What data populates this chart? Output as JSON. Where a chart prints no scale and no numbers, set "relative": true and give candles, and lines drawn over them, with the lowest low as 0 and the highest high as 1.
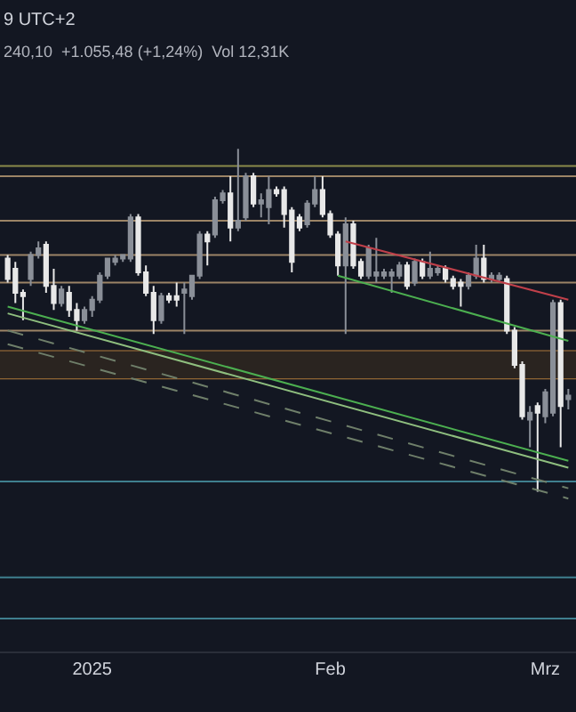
{
  "chart_data": {
    "type": "candlestick",
    "relative": true,
    "annotations": [
      "9 UTC+2",
      "240,10  +1.055,48 (+1,24%)  Vol 12,31K"
    ],
    "x": [
      "2024-12-21",
      "2024-12-22",
      "2024-12-23",
      "2024-12-24",
      "2024-12-25",
      "2024-12-26",
      "2024-12-27",
      "2024-12-28",
      "2024-12-29",
      "2024-12-30",
      "2024-12-31",
      "2025-01-01",
      "2025-01-02",
      "2025-01-03",
      "2025-01-04",
      "2025-01-05",
      "2025-01-06",
      "2025-01-07",
      "2025-01-08",
      "2025-01-09",
      "2025-01-10",
      "2025-01-11",
      "2025-01-12",
      "2025-01-13",
      "2025-01-14",
      "2025-01-15",
      "2025-01-16",
      "2025-01-17",
      "2025-01-18",
      "2025-01-19",
      "2025-01-20",
      "2025-01-21",
      "2025-01-22",
      "2025-01-23",
      "2025-01-24",
      "2025-01-25",
      "2025-01-26",
      "2025-01-27",
      "2025-01-28",
      "2025-01-29",
      "2025-01-30",
      "2025-01-31",
      "2025-02-01",
      "2025-02-02",
      "2025-02-03",
      "2025-02-04",
      "2025-02-05",
      "2025-02-06",
      "2025-02-07",
      "2025-02-08",
      "2025-02-09",
      "2025-02-10",
      "2025-02-11",
      "2025-02-12",
      "2025-02-13",
      "2025-02-14",
      "2025-02-15",
      "2025-02-16",
      "2025-02-17",
      "2025-02-18",
      "2025-02-19",
      "2025-02-20",
      "2025-02-21",
      "2025-02-22",
      "2025-02-23",
      "2025-02-24",
      "2025-02-25",
      "2025-02-26",
      "2025-02-27",
      "2025-02-28",
      "2025-03-01",
      "2025-03-02",
      "2025-03-03",
      "2025-03-04"
    ],
    "ohlc": [
      [
        0.68,
        0.69,
        0.61,
        0.62
      ],
      [
        0.65,
        0.67,
        0.55,
        0.58
      ],
      [
        0.58,
        0.59,
        0.5,
        0.57
      ],
      [
        0.62,
        0.7,
        0.6,
        0.69
      ],
      [
        0.69,
        0.73,
        0.68,
        0.71
      ],
      [
        0.72,
        0.73,
        0.58,
        0.6
      ],
      [
        0.6,
        0.65,
        0.53,
        0.55
      ],
      [
        0.55,
        0.6,
        0.54,
        0.59
      ],
      [
        0.58,
        0.6,
        0.51,
        0.53
      ],
      [
        0.53,
        0.55,
        0.47,
        0.5
      ],
      [
        0.5,
        0.54,
        0.49,
        0.53
      ],
      [
        0.53,
        0.57,
        0.51,
        0.56
      ],
      [
        0.56,
        0.64,
        0.55,
        0.63
      ],
      [
        0.63,
        0.68,
        0.62,
        0.68
      ],
      [
        0.67,
        0.69,
        0.66,
        0.68
      ],
      [
        0.68,
        0.69,
        0.67,
        0.69
      ],
      [
        0.68,
        0.81,
        0.67,
        0.8
      ],
      [
        0.8,
        0.81,
        0.63,
        0.64
      ],
      [
        0.64,
        0.66,
        0.57,
        0.58
      ],
      [
        0.58,
        0.6,
        0.46,
        0.5
      ],
      [
        0.5,
        0.58,
        0.49,
        0.57
      ],
      [
        0.57,
        0.58,
        0.55,
        0.56
      ],
      [
        0.57,
        0.61,
        0.54,
        0.56
      ],
      [
        0.58,
        0.61,
        0.46,
        0.59
      ],
      [
        0.57,
        0.63,
        0.56,
        0.63
      ],
      [
        0.63,
        0.76,
        0.62,
        0.75
      ],
      [
        0.75,
        0.76,
        0.66,
        0.73
      ],
      [
        0.75,
        0.86,
        0.74,
        0.85
      ],
      [
        0.85,
        0.88,
        0.84,
        0.87
      ],
      [
        0.87,
        0.92,
        0.73,
        0.77
      ],
      [
        0.77,
        1.0,
        0.76,
        0.79
      ],
      [
        0.8,
        0.93,
        0.79,
        0.92
      ],
      [
        0.92,
        0.93,
        0.83,
        0.84
      ],
      [
        0.84,
        0.87,
        0.8,
        0.85
      ],
      [
        0.83,
        0.92,
        0.78,
        0.88
      ],
      [
        0.88,
        0.89,
        0.86,
        0.87
      ],
      [
        0.88,
        0.89,
        0.77,
        0.81
      ],
      [
        0.82,
        0.83,
        0.64,
        0.67
      ],
      [
        0.8,
        0.81,
        0.76,
        0.77
      ],
      [
        0.78,
        0.85,
        0.77,
        0.84
      ],
      [
        0.84,
        0.92,
        0.83,
        0.88
      ],
      [
        0.88,
        0.92,
        0.8,
        0.81
      ],
      [
        0.81,
        0.82,
        0.74,
        0.75
      ],
      [
        0.75,
        0.76,
        0.63,
        0.66
      ],
      [
        0.66,
        0.8,
        0.46,
        0.78
      ],
      [
        0.78,
        0.79,
        0.65,
        0.66
      ],
      [
        0.67,
        0.68,
        0.62,
        0.63
      ],
      [
        0.63,
        0.72,
        0.62,
        0.71
      ],
      [
        0.63,
        0.74,
        0.61,
        0.64
      ],
      [
        0.63,
        0.65,
        0.62,
        0.64
      ],
      [
        0.63,
        0.65,
        0.58,
        0.64
      ],
      [
        0.63,
        0.67,
        0.62,
        0.66
      ],
      [
        0.66,
        0.67,
        0.59,
        0.6
      ],
      [
        0.61,
        0.68,
        0.6,
        0.67
      ],
      [
        0.67,
        0.68,
        0.62,
        0.63
      ],
      [
        0.63,
        0.7,
        0.62,
        0.65
      ],
      [
        0.64,
        0.66,
        0.63,
        0.65
      ],
      [
        0.65,
        0.66,
        0.61,
        0.62
      ],
      [
        0.62,
        0.63,
        0.59,
        0.6
      ],
      [
        0.61,
        0.62,
        0.54,
        0.6
      ],
      [
        0.6,
        0.64,
        0.59,
        0.63
      ],
      [
        0.63,
        0.72,
        0.62,
        0.68
      ],
      [
        0.68,
        0.72,
        0.61,
        0.62
      ],
      [
        0.62,
        0.64,
        0.61,
        0.63
      ],
      [
        0.62,
        0.64,
        0.61,
        0.63
      ],
      [
        0.62,
        0.63,
        0.46,
        0.47
      ],
      [
        0.47,
        0.48,
        0.36,
        0.37
      ],
      [
        0.37,
        0.38,
        0.21,
        0.22
      ],
      [
        0.21,
        0.25,
        0.13,
        0.23
      ],
      [
        0.25,
        0.26,
        0.0,
        0.23
      ],
      [
        0.22,
        0.3,
        0.2,
        0.29
      ],
      [
        0.23,
        0.56,
        0.22,
        0.55
      ],
      [
        0.55,
        0.56,
        0.13,
        0.25
      ],
      [
        0.27,
        0.3,
        0.24,
        0.28
      ]
    ],
    "series": [
      {
        "type": "line",
        "color": "#4caf50",
        "x": [
          "2024-12-21",
          "2025-03-04"
        ],
        "values": [
          0.54,
          0.09
        ]
      },
      {
        "type": "line",
        "color": "#8fbf7f",
        "x": [
          "2024-12-21",
          "2025-03-04"
        ],
        "values": [
          0.52,
          0.07
        ]
      },
      {
        "type": "line",
        "color": "#4caf50",
        "x": [
          "2025-02-02",
          "2025-03-04"
        ],
        "values": [
          0.63,
          0.44
        ]
      },
      {
        "type": "line",
        "color": "#c0404a",
        "x": [
          "2025-02-03",
          "2025-03-04"
        ],
        "values": [
          0.73,
          0.56
        ]
      },
      {
        "type": "line",
        "color": "#6f7f6a",
        "line_style": "dashed",
        "x": [
          "2024-12-21",
          "2025-03-04"
        ],
        "values": [
          0.47,
          0.01
        ]
      },
      {
        "type": "line",
        "color": "#6f7f6a",
        "line_style": "dashed",
        "x": [
          "2024-12-21",
          "2025-03-04"
        ],
        "values": [
          0.43,
          -0.02
        ]
      }
    ],
    "ref_lines": [
      {
        "axis": "y",
        "value": 0.95,
        "color": "#8a8a4a"
      },
      {
        "axis": "y",
        "value": 0.92,
        "color": "#9c8466"
      },
      {
        "axis": "y",
        "value": 0.79,
        "color": "#9c8466"
      },
      {
        "axis": "y",
        "value": 0.69,
        "color": "#9c8466"
      },
      {
        "axis": "y",
        "value": 0.61,
        "color": "#9c8466"
      },
      {
        "axis": "y",
        "value": 0.47,
        "color": "#9c8466"
      },
      {
        "axis": "y",
        "value": 0.41,
        "color": "#b07a3a"
      },
      {
        "axis": "y",
        "value": 0.33,
        "color": "#b07a3a"
      },
      {
        "axis": "y",
        "value": 0.03,
        "color": "#3f7f8f"
      },
      {
        "axis": "y",
        "value": -0.25,
        "color": "#3f7f8f"
      },
      {
        "axis": "y",
        "value": -0.37,
        "color": "#3f7f8f"
      }
    ],
    "bands": [
      {
        "axis": "y",
        "from": 0.33,
        "to": 0.41,
        "color": "#2a2420"
      }
    ],
    "xlim": [
      "2024-12-20",
      "2025-03-05"
    ],
    "xticks": [
      {
        "value": "2025-01-01",
        "label": "2025"
      },
      {
        "value": "2025-02-01",
        "label": "Feb"
      },
      {
        "value": "2025-03-01",
        "label": "Mrz"
      }
    ],
    "tick_labels": "x",
    "grid": false
  }
}
